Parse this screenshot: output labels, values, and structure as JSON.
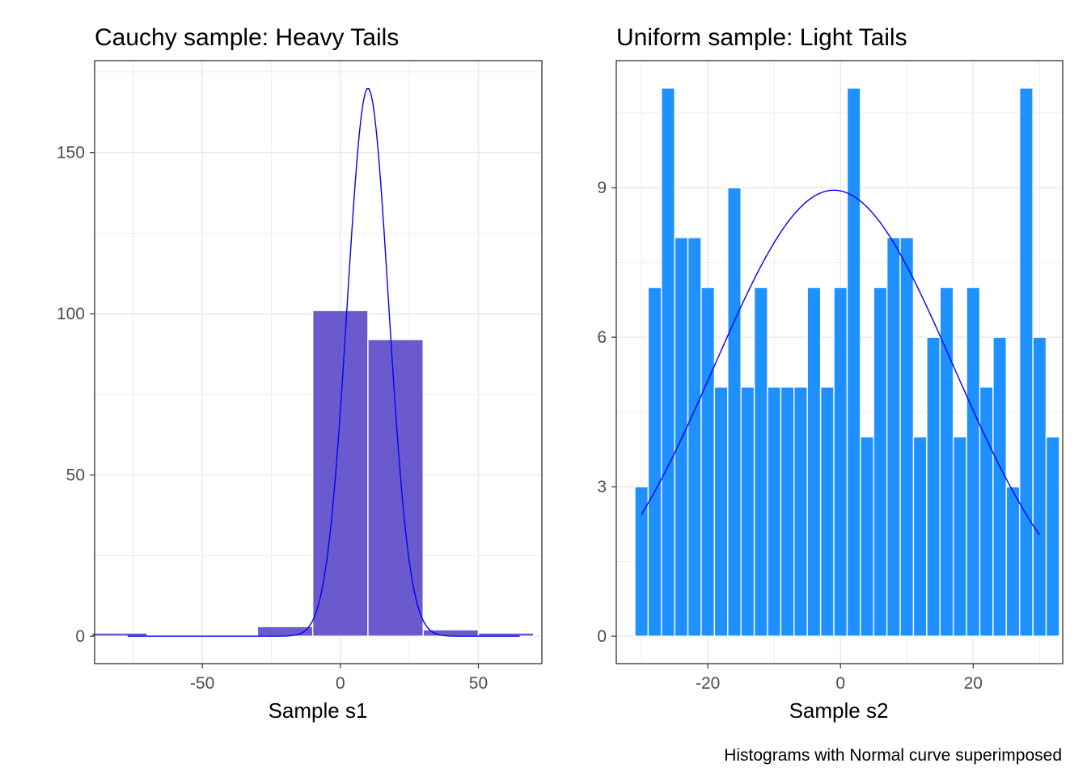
{
  "caption": "Histograms with Normal curve superimposed",
  "colors": {
    "left_bars": "#6A5ACD",
    "right_bars": "#1E90FF",
    "curve": "#0000FF",
    "grid": "#EBEBEB",
    "panel_border": "#333333",
    "tick_text": "#4D4D4D"
  },
  "chart_data": [
    {
      "type": "bar",
      "title": "Cauchy sample: Heavy Tails",
      "xlabel": "Sample s1",
      "ylabel": "",
      "grid": true,
      "xlim": [
        -89,
        73
      ],
      "ylim": [
        -8.5,
        178.5
      ],
      "x_ticks": [
        -50,
        0,
        50
      ],
      "y_ticks": [
        0,
        50,
        100,
        150
      ],
      "bins": [
        {
          "x0": -90,
          "x1": -70,
          "count": 1
        },
        {
          "x0": -70,
          "x1": -50,
          "count": 0
        },
        {
          "x0": -50,
          "x1": -30,
          "count": 0
        },
        {
          "x0": -30,
          "x1": -10,
          "count": 3
        },
        {
          "x0": -10,
          "x1": 10,
          "count": 101
        },
        {
          "x0": 10,
          "x1": 30,
          "count": 92
        },
        {
          "x0": 30,
          "x1": 50,
          "count": 2
        },
        {
          "x0": 50,
          "x1": 70,
          "count": 1
        }
      ],
      "normal_curve": {
        "mean": 10,
        "sd": 7.5,
        "peak": 170,
        "x_range": [
          -77,
          65
        ]
      }
    },
    {
      "type": "bar",
      "title": "Uniform sample: Light Tails",
      "xlabel": "Sample s2",
      "ylabel": "",
      "grid": true,
      "xlim": [
        -33.8,
        33.5
      ],
      "ylim": [
        -0.55,
        11.55
      ],
      "x_ticks": [
        -20,
        0,
        20
      ],
      "y_ticks": [
        0,
        3,
        6,
        9
      ],
      "bin_start": -31,
      "bin_width": 2,
      "counts": [
        3,
        7,
        11,
        8,
        8,
        7,
        5,
        9,
        5,
        7,
        5,
        5,
        5,
        7,
        5,
        7,
        11,
        4,
        7,
        8,
        8,
        4,
        6,
        7,
        4,
        7,
        5,
        6,
        3,
        11,
        6,
        4
      ],
      "normal_curve": {
        "mean": -1,
        "sd": 18,
        "peak": 8.95,
        "x_range": [
          -30,
          30
        ]
      }
    }
  ]
}
